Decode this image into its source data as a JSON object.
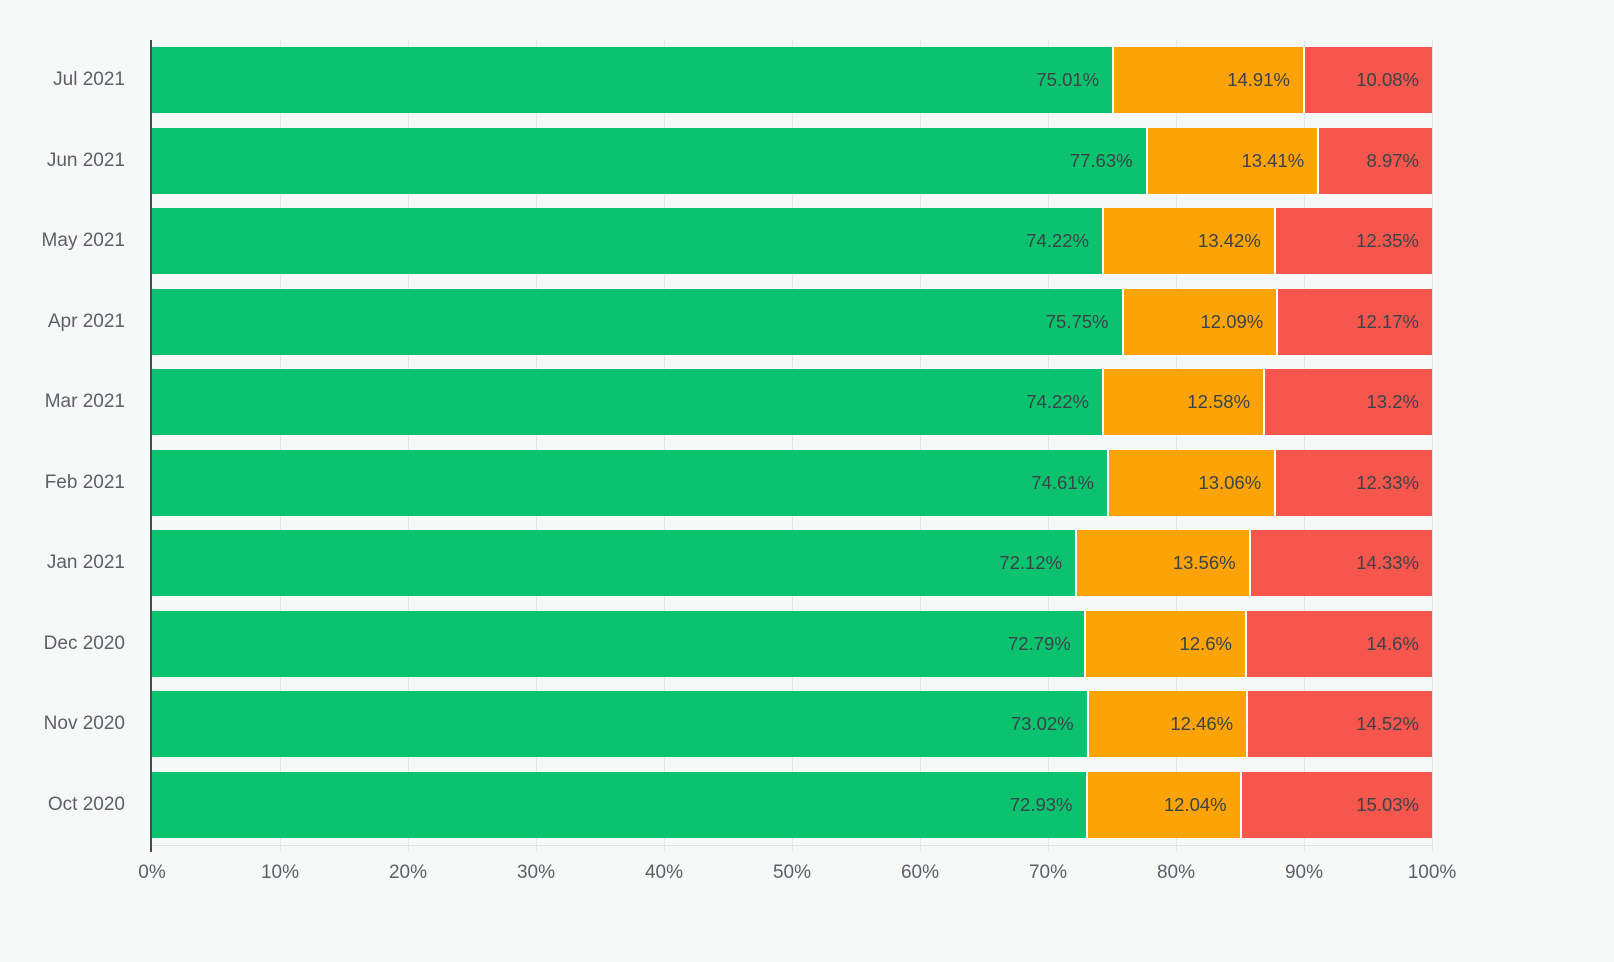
{
  "style": {
    "background": "#f7f8f8",
    "axis_line_color": "#404a52",
    "gridline_color": "#e3e6e8",
    "bar_label_color": "#3b434a",
    "axis_label_color": "#5a6268"
  },
  "chart_data": {
    "type": "bar",
    "variant": "horizontal-stacked",
    "title": "",
    "xlabel": "",
    "ylabel": "",
    "legend": "none",
    "grid": "vertical major every 10%",
    "x_axis": {
      "min": 0,
      "max": 100,
      "tick_step": 10,
      "ticks": [
        "0%",
        "10%",
        "20%",
        "30%",
        "40%",
        "50%",
        "60%",
        "70%",
        "80%",
        "90%",
        "100%"
      ]
    },
    "categories": [
      "Jul 2021",
      "Jun 2021",
      "May 2021",
      "Apr 2021",
      "Mar 2021",
      "Feb 2021",
      "Jan 2021",
      "Dec 2020",
      "Nov 2020",
      "Oct 2020"
    ],
    "series": [
      {
        "name": "green",
        "color": "#0bc36e",
        "values": [
          75.01,
          77.63,
          74.22,
          75.75,
          74.22,
          74.61,
          72.12,
          72.79,
          73.02,
          72.93
        ]
      },
      {
        "name": "orange",
        "color": "#fba307",
        "values": [
          14.91,
          13.41,
          13.42,
          12.09,
          12.58,
          13.06,
          13.56,
          12.6,
          12.46,
          12.04
        ]
      },
      {
        "name": "red",
        "color": "#f6564c",
        "values": [
          10.08,
          8.97,
          12.35,
          12.17,
          13.2,
          12.33,
          14.33,
          14.6,
          14.52,
          15.03
        ]
      }
    ],
    "value_suffix": "%"
  }
}
